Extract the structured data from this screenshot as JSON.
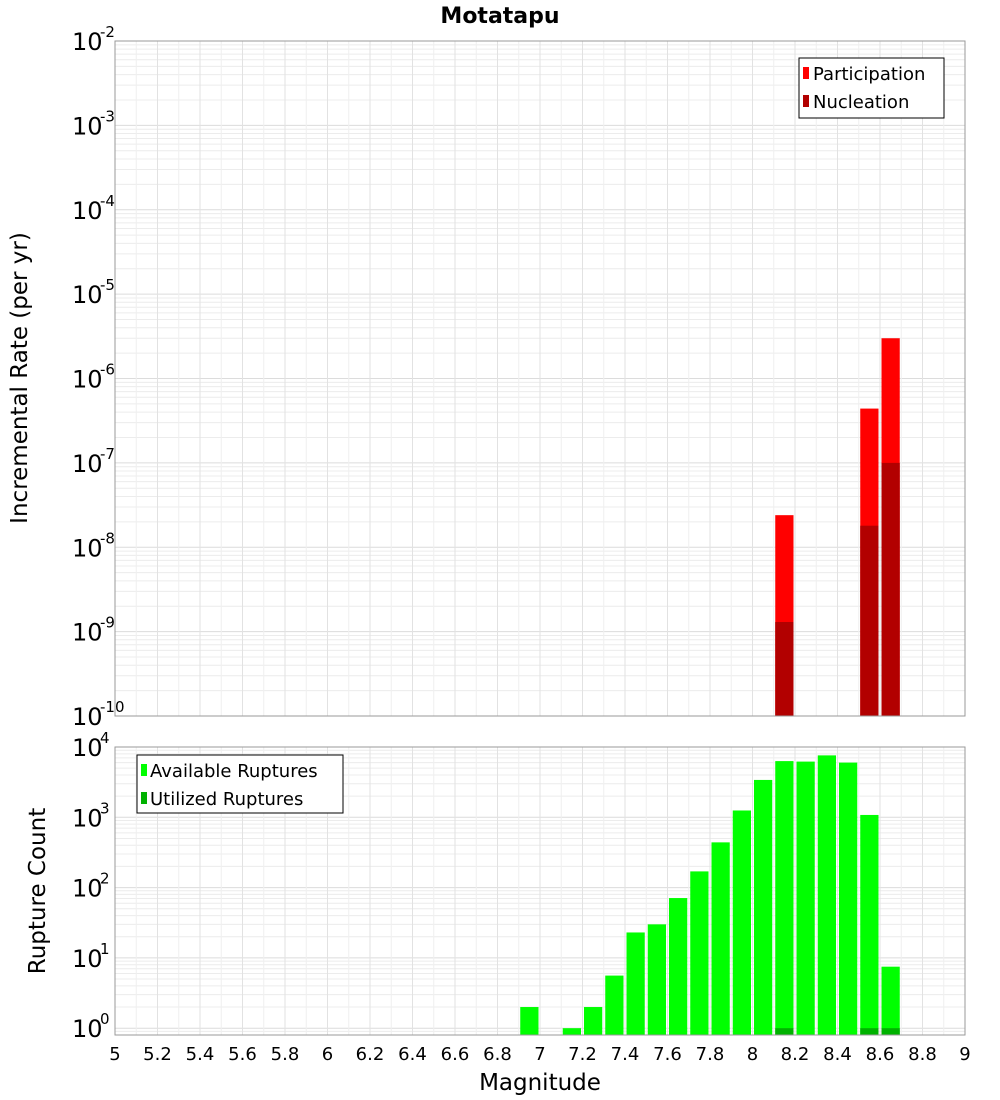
{
  "chart_data": [
    {
      "type": "bar",
      "title": "Motatapu",
      "ylabel": "Incremental Rate (per yr)",
      "yscale": "log",
      "ylim": [
        1e-10,
        0.01
      ],
      "ytick_base": "10",
      "ytick_exponents": [
        "-10",
        "-9",
        "-8",
        "-7",
        "-6",
        "-5",
        "-4",
        "-3",
        "-2"
      ],
      "legend": {
        "position": "top-right",
        "entries": [
          "Participation",
          "Nucleation"
        ]
      },
      "colors": {
        "Participation": "#ff0000",
        "Nucleation": "#b20000"
      },
      "series": [
        {
          "name": "Participation",
          "x": [
            8.15,
            8.55,
            8.65
          ],
          "values": [
            2.4e-08,
            4.4e-07,
            3e-06
          ]
        },
        {
          "name": "Nucleation",
          "x": [
            8.15,
            8.55,
            8.65
          ],
          "values": [
            1.3e-09,
            1.8e-08,
            1e-07
          ]
        }
      ],
      "grid": true
    },
    {
      "type": "bar",
      "ylabel": "Rupture Count",
      "yscale": "log",
      "ylim": [
        0.8,
        10000
      ],
      "ytick_base": "10",
      "ytick_exponents": [
        "0",
        "1",
        "2",
        "3",
        "4"
      ],
      "legend": {
        "position": "top-left",
        "entries": [
          "Available Ruptures",
          "Utilized Ruptures"
        ]
      },
      "colors": {
        "Available Ruptures": "#00ff00",
        "Utilized Ruptures": "#00b200"
      },
      "series": [
        {
          "name": "Available Ruptures",
          "x": [
            6.95,
            7.15,
            7.25,
            7.35,
            7.45,
            7.55,
            7.65,
            7.75,
            7.85,
            7.95,
            8.05,
            8.15,
            8.25,
            8.35,
            8.45,
            8.55,
            8.65
          ],
          "values": [
            2,
            1,
            2,
            5.6,
            23,
            30,
            71,
            170,
            440,
            1250,
            3400,
            6300,
            6200,
            7600,
            6000,
            1080,
            7.5
          ]
        },
        {
          "name": "Utilized Ruptures",
          "x": [
            8.15,
            8.55,
            8.65
          ],
          "values": [
            1,
            1,
            1
          ]
        }
      ],
      "xlabel": "Magnitude",
      "xlim": [
        5,
        9
      ],
      "xticks": [
        "5",
        "5.2",
        "5.4",
        "5.6",
        "5.8",
        "6",
        "6.2",
        "6.4",
        "6.6",
        "6.8",
        "7",
        "7.2",
        "7.4",
        "7.6",
        "7.8",
        "8",
        "8.2",
        "8.4",
        "8.6",
        "8.8",
        "9"
      ],
      "bar_width": 0.1,
      "grid": true
    }
  ]
}
